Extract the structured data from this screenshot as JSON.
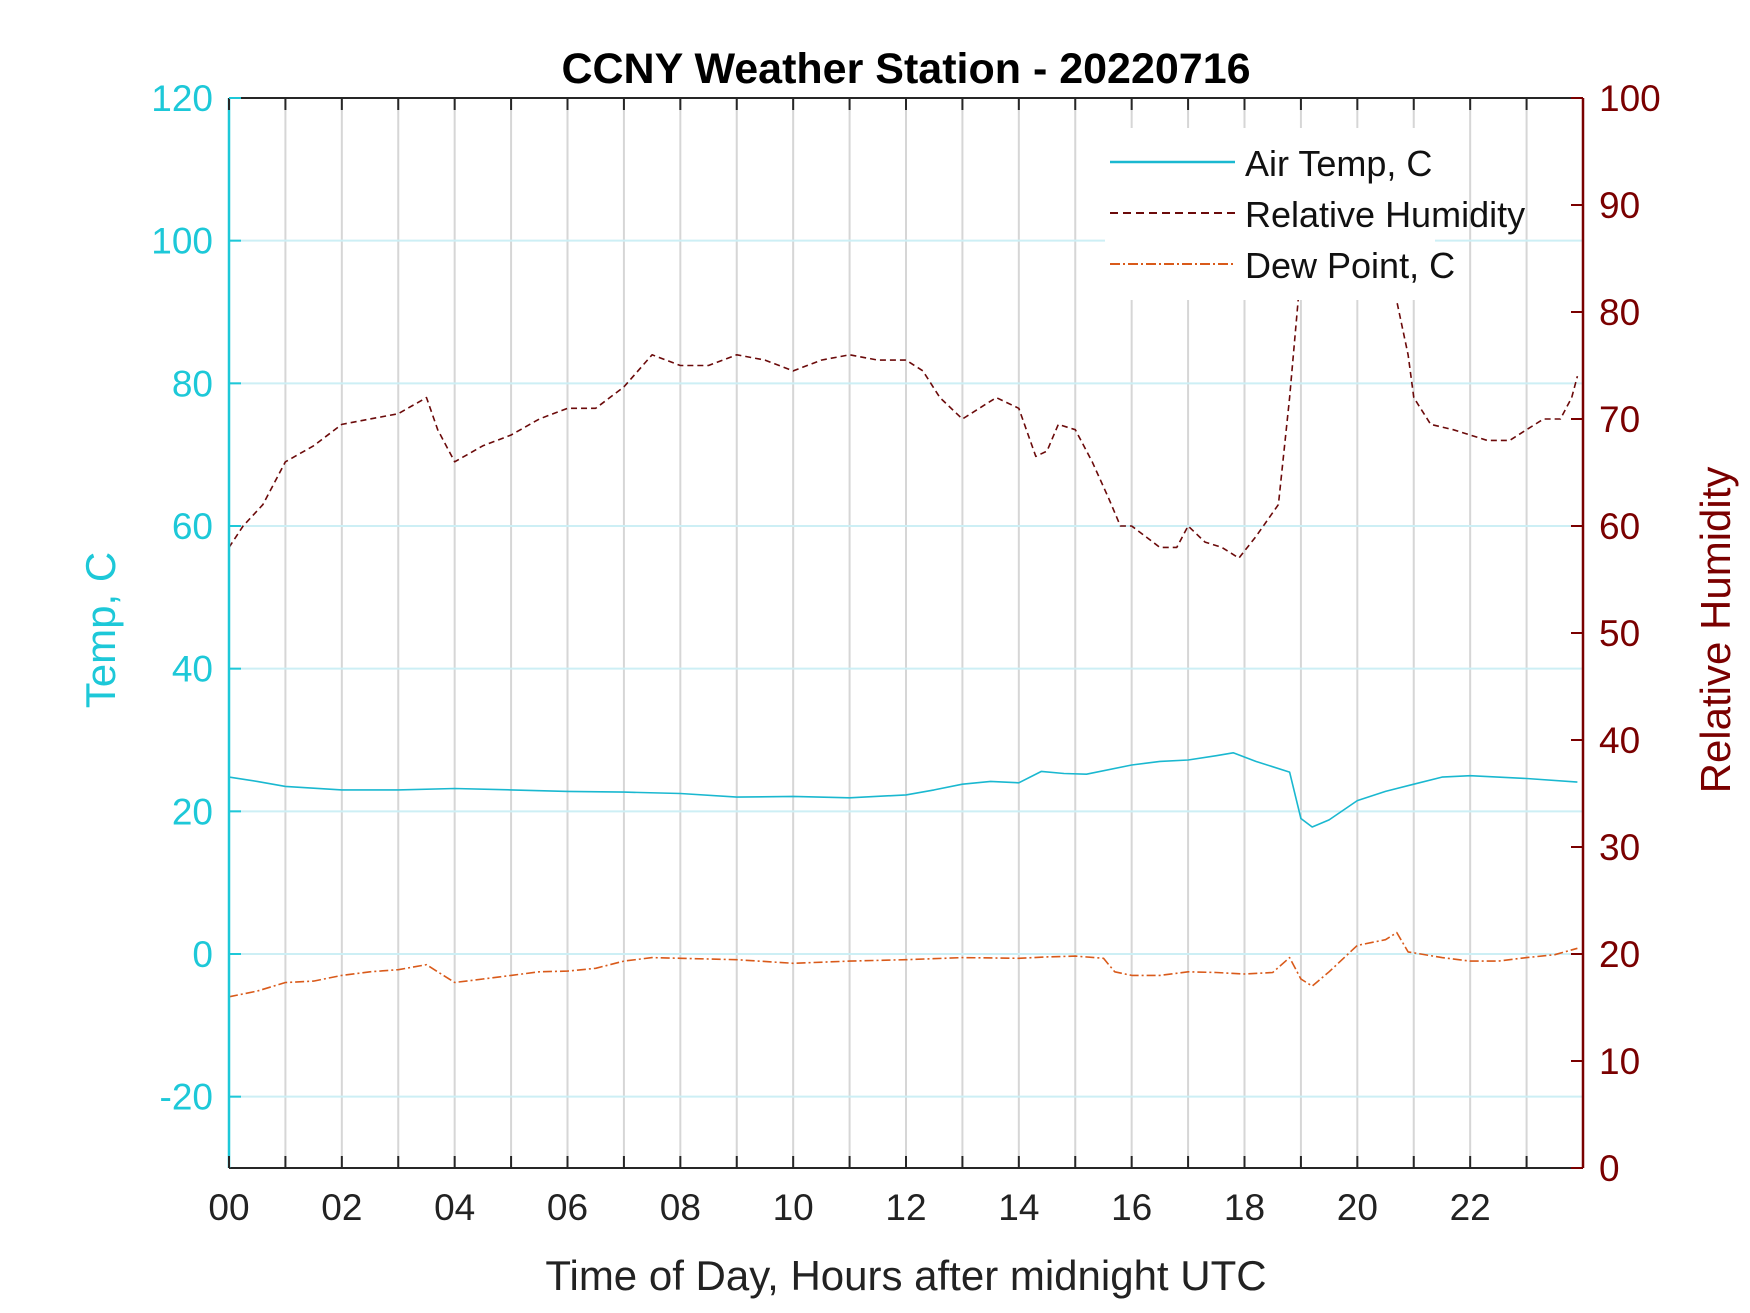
{
  "chart_data": {
    "type": "line",
    "title": "CCNY Weather Station - 20220716",
    "xlabel": "Time of Day, Hours after midnight UTC",
    "ylabel_left": "Temp, C",
    "ylabel_right": "Relative Humidity",
    "xlim": [
      0,
      24
    ],
    "ylim_left": [
      -30,
      120
    ],
    "ylim_right": [
      0,
      100
    ],
    "x_ticks": [
      "00",
      "02",
      "04",
      "06",
      "08",
      "10",
      "12",
      "14",
      "16",
      "18",
      "20",
      "22"
    ],
    "x_tick_values": [
      0,
      2,
      4,
      6,
      8,
      10,
      12,
      14,
      16,
      18,
      20,
      22
    ],
    "y_ticks_left": [
      "120",
      "100",
      "80",
      "60",
      "40",
      "20",
      "0",
      "-20"
    ],
    "y_tick_values_left": [
      120,
      100,
      80,
      60,
      40,
      20,
      0,
      -20
    ],
    "y_ticks_right": [
      "100",
      "90",
      "80",
      "70",
      "60",
      "50",
      "40",
      "30",
      "20",
      "10",
      "0"
    ],
    "y_tick_values_right": [
      100,
      90,
      80,
      70,
      60,
      50,
      40,
      30,
      20,
      10,
      0
    ],
    "grid": "on",
    "legend_position": "top-right",
    "colors": {
      "left_axis": "#1dc8d8",
      "right_axis": "#7a0000",
      "air_temp": "#1ab8d0",
      "humidity": "#6b0a0a",
      "dew_point": "#d95a1a",
      "vertical_grid": "#d6d6d6",
      "horizontal_grid": "#cdeff5"
    },
    "series": [
      {
        "name": "Air Temp, C",
        "axis": "left",
        "style": "solid",
        "x": [
          0,
          0.5,
          1,
          2,
          3,
          4,
          5,
          6,
          7,
          8,
          9,
          10,
          11,
          12,
          12.5,
          13,
          13.5,
          14,
          14.4,
          14.8,
          15.2,
          16,
          16.5,
          17,
          17.5,
          17.8,
          18.2,
          18.8,
          19,
          19.2,
          19.5,
          20,
          20.5,
          21,
          21.5,
          22,
          23,
          23.9
        ],
        "values": [
          24.8,
          24.2,
          23.5,
          23.0,
          23.0,
          23.2,
          23.0,
          22.8,
          22.7,
          22.5,
          22.0,
          22.1,
          21.9,
          22.3,
          23.0,
          23.8,
          24.2,
          24.0,
          25.6,
          25.3,
          25.2,
          26.5,
          27.0,
          27.2,
          27.8,
          28.2,
          27.0,
          25.5,
          19.0,
          17.8,
          18.8,
          21.5,
          22.8,
          23.8,
          24.8,
          25.0,
          24.6,
          24.1
        ]
      },
      {
        "name": "Relative Humidity",
        "axis": "right",
        "style": "dashed",
        "x": [
          0,
          0.25,
          0.6,
          1,
          1.5,
          2,
          2.5,
          3,
          3.5,
          3.7,
          4,
          4.5,
          5,
          5.5,
          6,
          6.5,
          7,
          7.5,
          8,
          8.5,
          9,
          9.5,
          10,
          10.5,
          11,
          11.5,
          12,
          12.3,
          12.6,
          13,
          13.3,
          13.6,
          14,
          14.3,
          14.5,
          14.7,
          15,
          15.3,
          15.6,
          15.8,
          16,
          16.5,
          16.8,
          17,
          17.3,
          17.6,
          17.9,
          18.2,
          18.6,
          18.8,
          19,
          19.3,
          19.7,
          20,
          20.3,
          20.7,
          20.9,
          21,
          21.3,
          21.7,
          22,
          22.3,
          22.7,
          23,
          23.3,
          23.6,
          23.8,
          23.9
        ],
        "values": [
          58,
          60,
          62,
          66,
          67.5,
          69.5,
          70,
          70.5,
          72,
          69,
          66,
          67.5,
          68.5,
          70,
          71,
          71,
          73,
          76,
          75,
          75,
          76,
          75.5,
          74.5,
          75.5,
          76,
          75.5,
          75.5,
          74.5,
          72,
          70,
          71,
          72,
          71,
          66.5,
          67,
          69.5,
          69,
          66,
          62.5,
          60,
          60,
          58,
          58,
          60,
          58.5,
          58,
          57,
          59,
          62,
          72,
          84,
          84.5,
          84,
          84.5,
          84,
          81,
          76,
          72,
          69.5,
          69,
          68.5,
          68,
          68,
          69,
          70,
          70,
          72,
          74
        ]
      },
      {
        "name": "Dew Point, C",
        "axis": "left",
        "style": "dashdot",
        "x": [
          0,
          0.5,
          1,
          1.5,
          2,
          2.5,
          3,
          3.5,
          4,
          4.5,
          5,
          5.5,
          6,
          6.5,
          7,
          7.5,
          8,
          9,
          10,
          11,
          12,
          13,
          14,
          14.5,
          15,
          15.5,
          15.7,
          16,
          16.5,
          17,
          17.5,
          18,
          18.5,
          18.8,
          19,
          19.2,
          19.5,
          20,
          20.5,
          20.7,
          20.9,
          21.5,
          22,
          22.5,
          23,
          23.5,
          23.9
        ],
        "values": [
          -6.0,
          -5.2,
          -4.0,
          -3.8,
          -3.0,
          -2.5,
          -2.2,
          -1.5,
          -4.0,
          -3.5,
          -3.0,
          -2.5,
          -2.4,
          -2.0,
          -1.0,
          -0.5,
          -0.6,
          -0.8,
          -1.3,
          -1.0,
          -0.8,
          -0.5,
          -0.6,
          -0.4,
          -0.3,
          -0.6,
          -2.5,
          -3.0,
          -3.0,
          -2.5,
          -2.6,
          -2.8,
          -2.6,
          -0.5,
          -3.5,
          -4.5,
          -2.5,
          1.2,
          2.0,
          3.0,
          0.3,
          -0.5,
          -1.0,
          -1.0,
          -0.5,
          -0.1,
          0.8
        ]
      }
    ]
  }
}
